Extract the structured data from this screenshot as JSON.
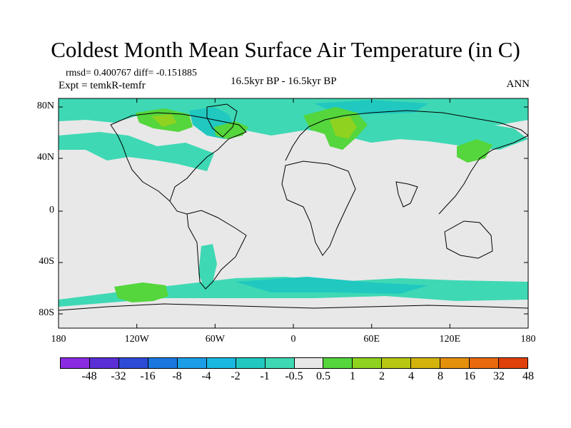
{
  "title": "Coldest Month Mean Surface Air Temperature (in C)",
  "stats": {
    "rmsd_line": "rmsd= 0.400767 diff= -0.151885",
    "expt_line": "Expt = temkR-temfr",
    "period": "16.5kyr BP - 16.5kyr BP",
    "season": "ANN"
  },
  "y_ticks": [
    "80N",
    "40N",
    "0",
    "40S",
    "80S"
  ],
  "x_ticks": [
    "180",
    "120W",
    "60W",
    "0",
    "60E",
    "120E",
    "180"
  ],
  "colorbar": {
    "colors": [
      "#8a2be2",
      "#5b2fd6",
      "#2e4bd8",
      "#1a77e0",
      "#1b9ee6",
      "#19b8e0",
      "#20c8c0",
      "#3ed8b4",
      "#e8e8e8",
      "#54d63c",
      "#8fd220",
      "#b8c812",
      "#d4b40c",
      "#e4900a",
      "#e86a0c",
      "#e0400a"
    ],
    "labels": [
      "-48",
      "-32",
      "-16",
      "-8",
      "-4",
      "-2",
      "-1",
      "-0.5",
      "0.5",
      "1",
      "2",
      "4",
      "8",
      "16",
      "32",
      "48"
    ]
  },
  "map_colors": {
    "background": "#e8e8e8",
    "cool_light": "#3ed8b4",
    "cool": "#20c8c0",
    "warm_light": "#54d63c",
    "warm": "#8fd220"
  }
}
